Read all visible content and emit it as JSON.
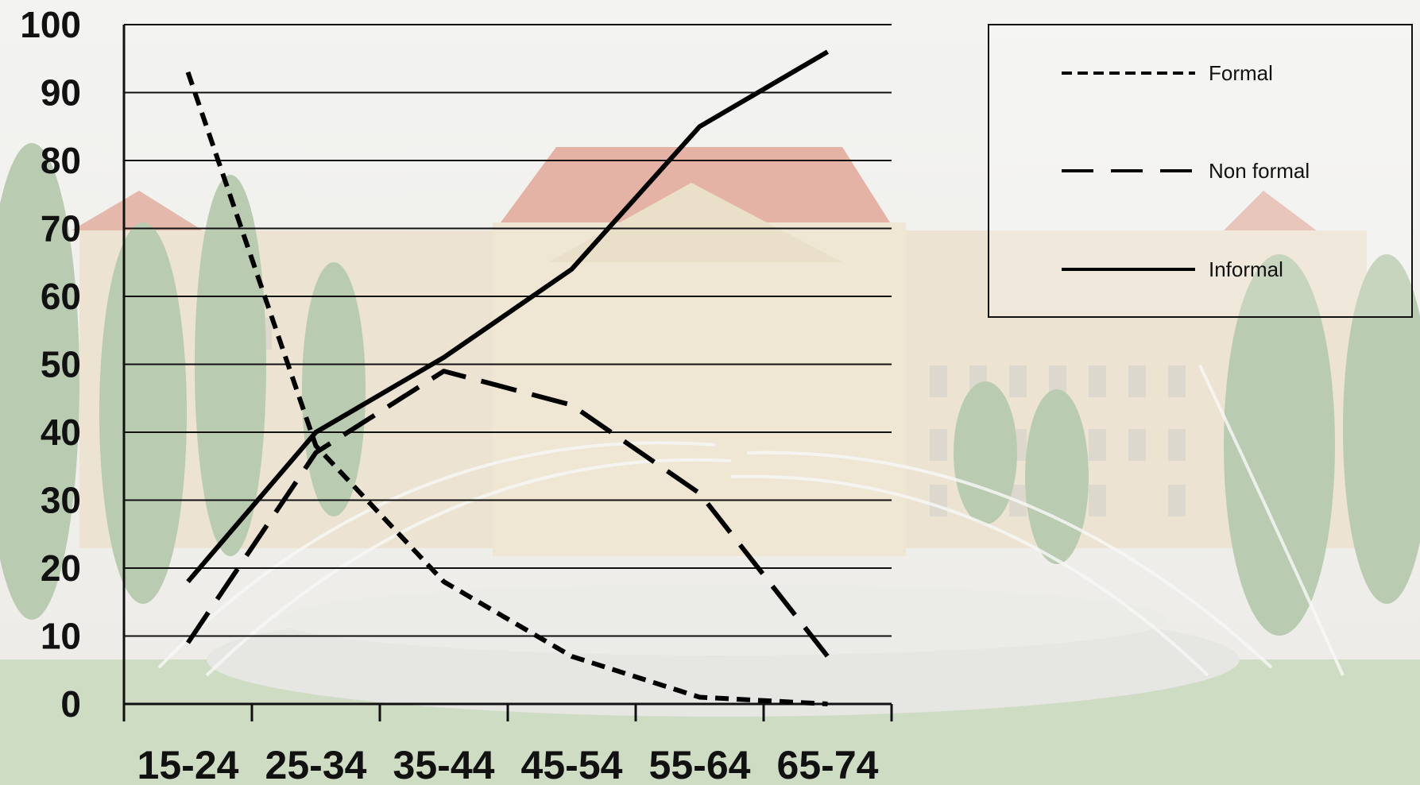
{
  "chart_data": {
    "type": "line",
    "categories": [
      "15-24",
      "25-34",
      "35-44",
      "45-54",
      "55-64",
      "65-74"
    ],
    "ylim": [
      0,
      100
    ],
    "y_ticks": [
      "0",
      "10",
      "20",
      "30",
      "40",
      "50",
      "60",
      "70",
      "80",
      "90",
      "100"
    ],
    "grid": true,
    "legend_position": "top-right",
    "background": "photograph of a large university building with a fountain in front, faded",
    "series": [
      {
        "name": "Formal",
        "style": "short-dash",
        "color": "#000000",
        "values": [
          93,
          38,
          18,
          7,
          1,
          0
        ]
      },
      {
        "name": "Non formal",
        "style": "long-dash",
        "color": "#000000",
        "values": [
          9,
          37,
          49,
          44,
          31,
          7
        ]
      },
      {
        "name": "Informal",
        "style": "solid",
        "color": "#000000",
        "values": [
          18,
          40,
          51,
          64,
          85,
          96
        ]
      }
    ]
  }
}
